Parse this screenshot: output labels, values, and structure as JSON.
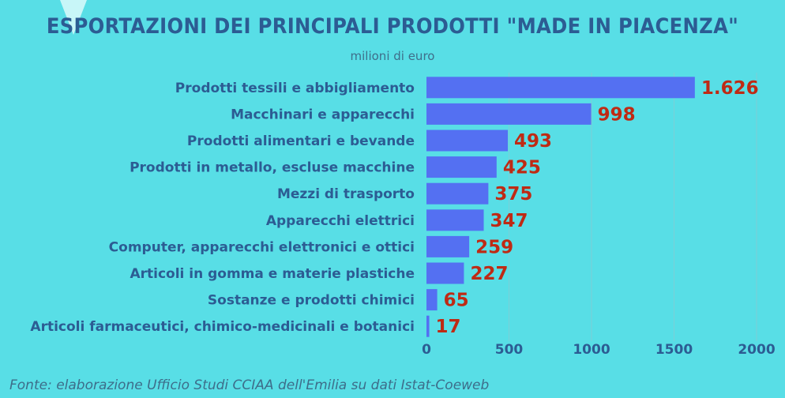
{
  "chart_data": {
    "type": "bar",
    "orientation": "horizontal",
    "title": "ESPORTAZIONI DEI PRINCIPALI PRODOTTI \"MADE IN PIACENZA\"",
    "subtitle": "milioni di euro",
    "categories": [
      "Prodotti tessili e abbigliamento",
      "Macchinari e apparecchi",
      "Prodotti alimentari e bevande",
      "Prodotti in metallo, escluse macchine",
      "Mezzi di trasporto",
      "Apparecchi elettrici",
      "Computer, apparecchi elettronici e ottici",
      "Articoli in gomma e materie plastiche",
      "Sostanze e prodotti chimici",
      "Articoli farmaceutici, chimico-medicinali e botanici"
    ],
    "values": [
      1626,
      998,
      493,
      425,
      375,
      347,
      259,
      227,
      65,
      17
    ],
    "value_labels": [
      "1.626",
      "998",
      "493",
      "425",
      "375",
      "347",
      "259",
      "227",
      "65",
      "17"
    ],
    "x_ticks": [
      0,
      500,
      1000,
      1500,
      2000
    ],
    "x_tick_labels": [
      "0",
      "500",
      "1000",
      "1500",
      "2000"
    ],
    "xlim": [
      0,
      2000
    ],
    "grid": true,
    "colors": {
      "bar": "#5470F2",
      "value_label": "#BF2A14",
      "category_label": "#2C5C93",
      "grid": "#7CCFD6",
      "background": "#58DEE6"
    }
  },
  "source": "Fonte: elaborazione Ufficio Studi CCIAA dell'Emilia su dati Istat-Coeweb",
  "decor": {
    "triangle_icon": "down-triangle-decoration"
  }
}
